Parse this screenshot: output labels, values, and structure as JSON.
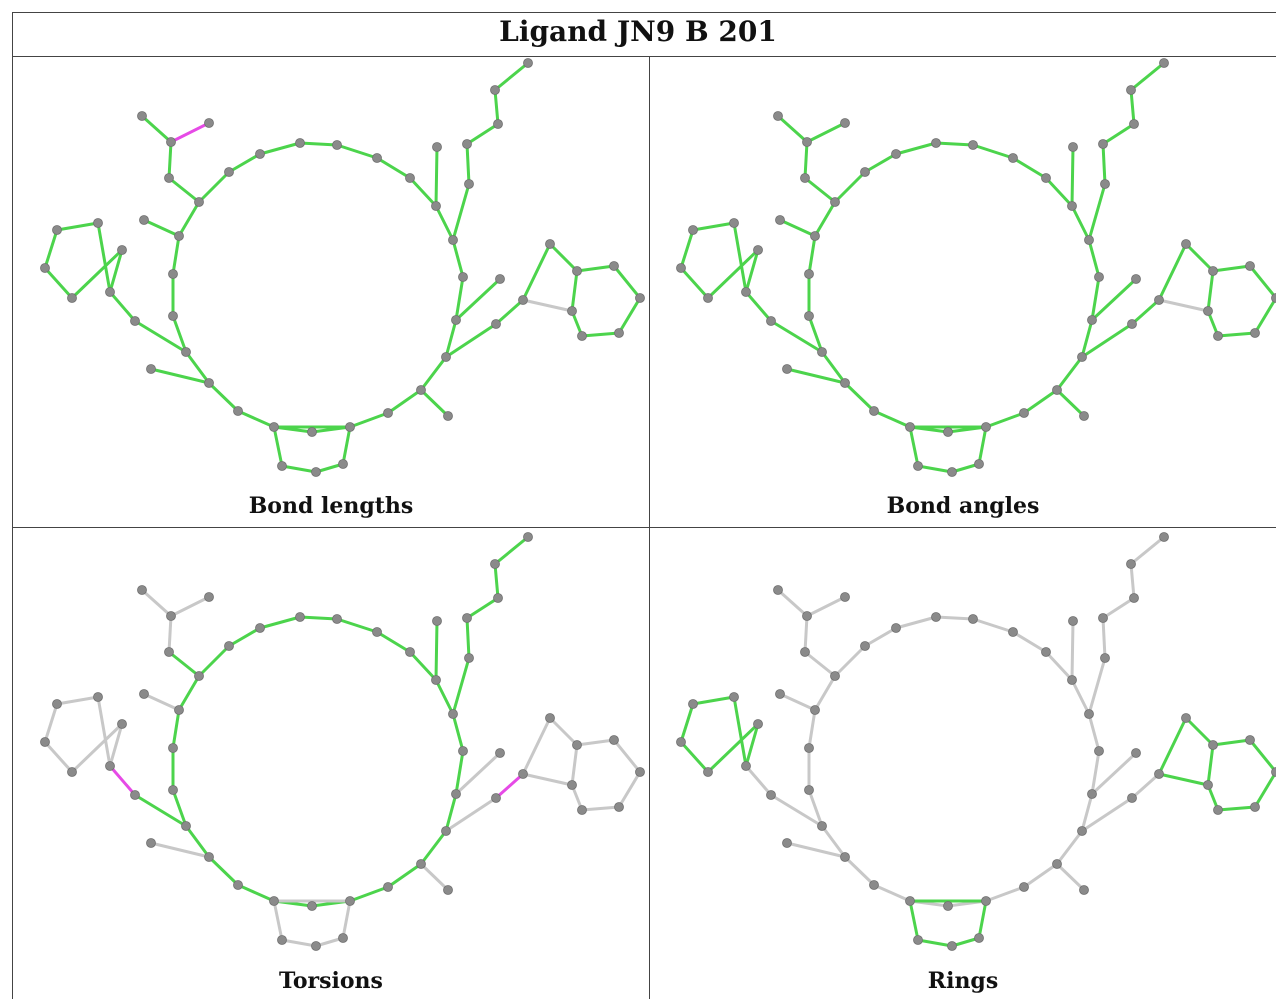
{
  "title": "Ligand JN9 B 201",
  "panels": [
    {
      "caption": "Bond lengths"
    },
    {
      "caption": "Bond angles"
    },
    {
      "caption": "Torsions"
    },
    {
      "caption": "Rings"
    }
  ],
  "colors": {
    "atom": "#8a8a8a",
    "bond_ok": "#4cd44c",
    "bond_outlier": "#e64ae6",
    "bond_unchecked": "#c8c8c8"
  }
}
